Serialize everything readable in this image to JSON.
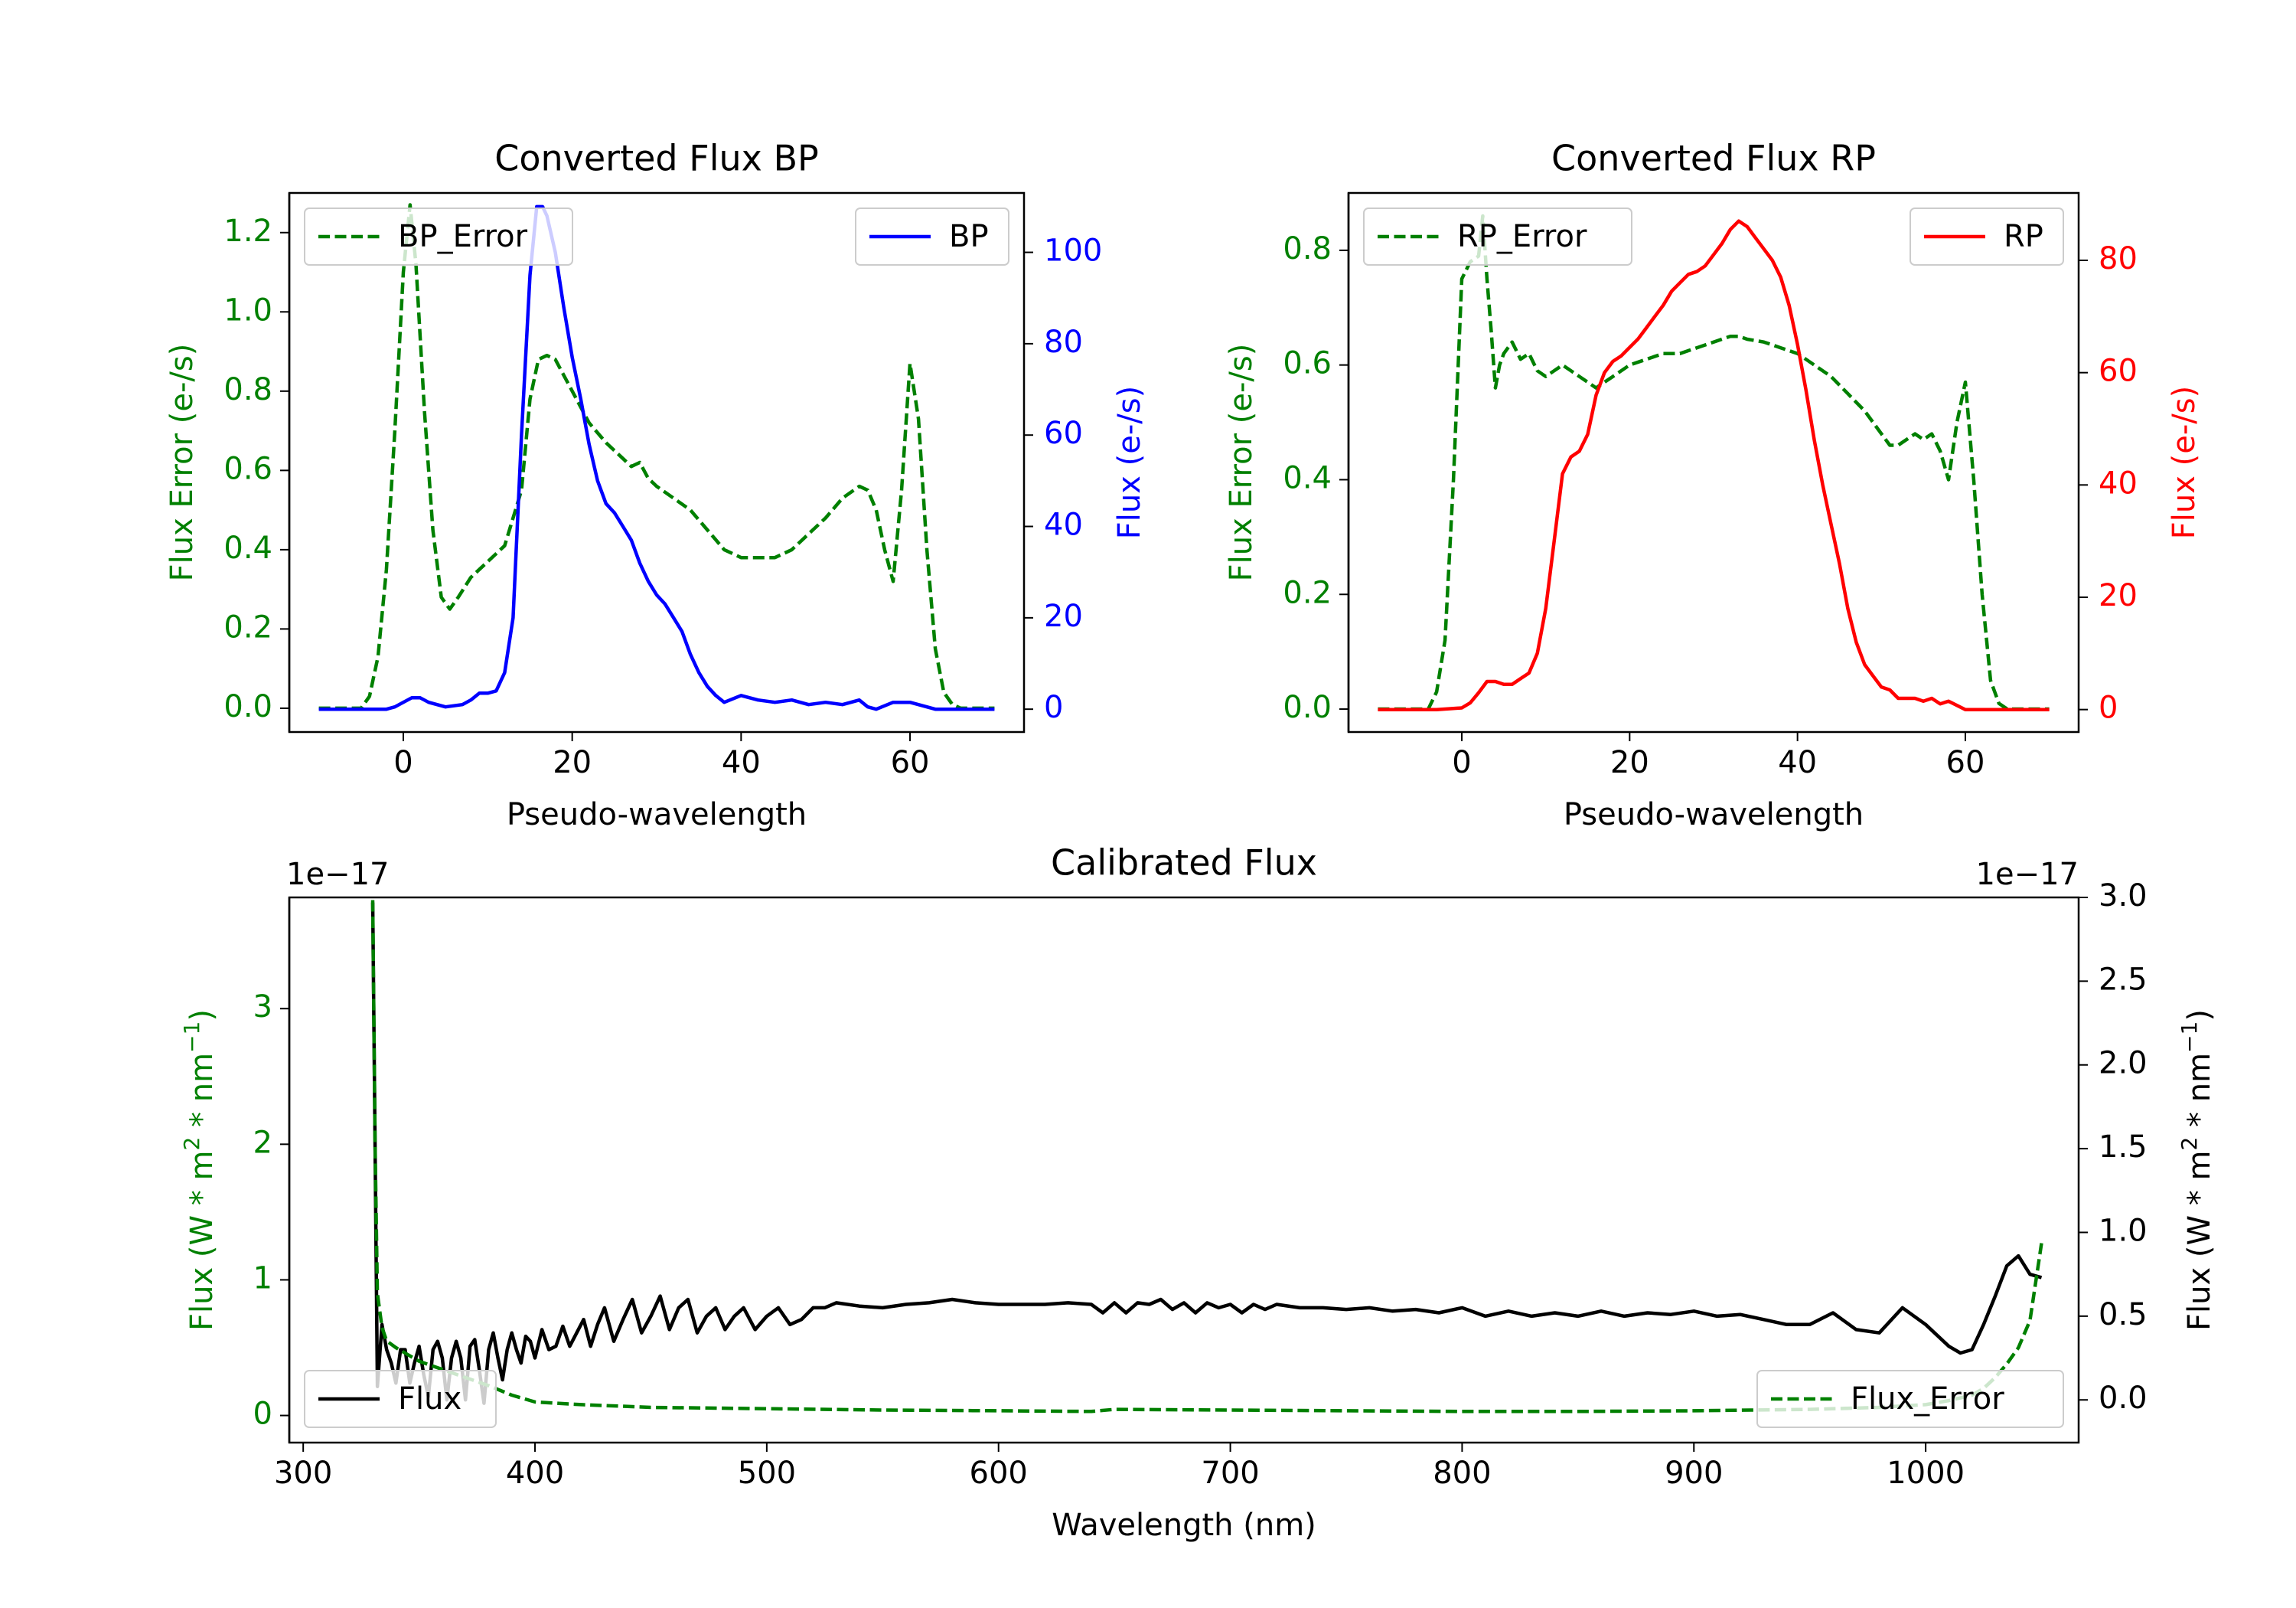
{
  "figure_colors": {
    "green": "#008000",
    "blue": "#0000ff",
    "red": "#ff0000",
    "black": "#000000"
  },
  "chart_data": [
    {
      "id": "bp",
      "type": "line",
      "title": "Converted Flux BP",
      "xlabel": "Pseudo-wavelength",
      "xlim": [
        -13.5,
        73.5
      ],
      "xticks": [
        0,
        20,
        40,
        60
      ],
      "left_axis": {
        "label": "Flux Error (e-/s)",
        "color": "#008000",
        "ylim": [
          -0.06,
          1.3
        ],
        "ticks": [
          0.0,
          0.2,
          0.4,
          0.6,
          0.8,
          1.0,
          1.2
        ],
        "tick_labels": [
          "0.0",
          "0.2",
          "0.4",
          "0.6",
          "0.8",
          "1.0",
          "1.2"
        ]
      },
      "right_axis": {
        "label": "Flux (e-/s)",
        "color": "#0000ff",
        "ylim": [
          -5,
          113
        ],
        "ticks": [
          0,
          20,
          40,
          60,
          80,
          100
        ],
        "tick_labels": [
          "0",
          "20",
          "40",
          "60",
          "80",
          "100"
        ]
      },
      "series": [
        {
          "name": "BP_Error",
          "axis": "left",
          "style": "dashed",
          "color": "#008000",
          "x": [
            -10,
            -5,
            -4,
            -3,
            -2,
            -1,
            0,
            0.8,
            1.5,
            2.5,
            3.5,
            4.5,
            5.5,
            6.5,
            8,
            10,
            12,
            14,
            15,
            16,
            17,
            18,
            19,
            20,
            22,
            24,
            26,
            27,
            28,
            29,
            30,
            32,
            34,
            36,
            38,
            40,
            42,
            44,
            46,
            48,
            50,
            52,
            54,
            55,
            56,
            57,
            58,
            59,
            60,
            61,
            62,
            63,
            64,
            65,
            66,
            70
          ],
          "y": [
            0.0,
            0.0,
            0.03,
            0.13,
            0.35,
            0.7,
            1.1,
            1.27,
            1.12,
            0.75,
            0.45,
            0.28,
            0.25,
            0.28,
            0.33,
            0.37,
            0.41,
            0.55,
            0.78,
            0.88,
            0.89,
            0.88,
            0.84,
            0.8,
            0.72,
            0.67,
            0.63,
            0.61,
            0.62,
            0.58,
            0.56,
            0.53,
            0.5,
            0.45,
            0.4,
            0.38,
            0.38,
            0.38,
            0.4,
            0.44,
            0.48,
            0.53,
            0.56,
            0.55,
            0.5,
            0.4,
            0.32,
            0.55,
            0.87,
            0.73,
            0.4,
            0.15,
            0.04,
            0.01,
            0.0,
            0.0
          ]
        },
        {
          "name": "BP",
          "axis": "right",
          "style": "solid",
          "color": "#0000ff",
          "x": [
            -10,
            -3,
            -2,
            -1,
            0,
            1,
            2,
            3,
            5,
            7,
            8,
            9,
            10,
            11,
            12,
            13,
            14,
            15,
            15.8,
            16.5,
            17,
            18,
            19,
            20,
            21,
            22,
            23,
            24,
            25,
            26,
            27,
            28,
            29,
            30,
            31,
            32,
            33,
            34,
            35,
            36,
            37,
            38,
            40,
            42,
            44,
            46,
            48,
            50,
            52,
            54,
            55,
            56,
            58,
            60,
            62,
            63,
            65,
            70
          ],
          "y": [
            0,
            0,
            0,
            0.5,
            1.5,
            2.5,
            2.5,
            1.5,
            0.5,
            1.0,
            2.0,
            3.5,
            3.5,
            4.0,
            8,
            20,
            60,
            95,
            110,
            110,
            108,
            100,
            88,
            77,
            68,
            58,
            50,
            45,
            43,
            40,
            37,
            32,
            28,
            25,
            23,
            20,
            17,
            12,
            8,
            5,
            3,
            1.5,
            3,
            2,
            1.5,
            2,
            1,
            1.5,
            1.0,
            2,
            0.5,
            0,
            1.5,
            1.5,
            0.5,
            0,
            0,
            0
          ]
        }
      ],
      "legends": [
        {
          "label": "BP_Error",
          "position": "upper-left"
        },
        {
          "label": "BP",
          "position": "upper-right"
        }
      ]
    },
    {
      "id": "rp",
      "type": "line",
      "title": "Converted Flux RP",
      "xlabel": "Pseudo-wavelength",
      "xlim": [
        -13.5,
        73.5
      ],
      "xticks": [
        0,
        20,
        40,
        60
      ],
      "left_axis": {
        "label": "Flux Error (e-/s)",
        "color": "#008000",
        "ylim": [
          -0.04,
          0.9
        ],
        "ticks": [
          0.0,
          0.2,
          0.4,
          0.6,
          0.8
        ],
        "tick_labels": [
          "0.0",
          "0.2",
          "0.4",
          "0.6",
          "0.8"
        ]
      },
      "right_axis": {
        "label": "Flux (e-/s)",
        "color": "#ff0000",
        "ylim": [
          -4,
          92
        ],
        "ticks": [
          0,
          20,
          40,
          60,
          80
        ],
        "tick_labels": [
          "0",
          "20",
          "40",
          "60",
          "80"
        ]
      },
      "series": [
        {
          "name": "RP_Error",
          "axis": "left",
          "style": "dashed",
          "color": "#008000",
          "x": [
            -10,
            -4,
            -3,
            -2,
            -1,
            0,
            1,
            2,
            2.5,
            3,
            3.5,
            4,
            4.5,
            5,
            6,
            7,
            8,
            9,
            10,
            11,
            12,
            13,
            14,
            15,
            16,
            17,
            18,
            19,
            20,
            22,
            24,
            26,
            28,
            30,
            32,
            33,
            34,
            36,
            38,
            40,
            42,
            44,
            46,
            48,
            50,
            51,
            52,
            53,
            54,
            55,
            56,
            57,
            58,
            59,
            60,
            61,
            62,
            63,
            64,
            65,
            70
          ],
          "y": [
            0.0,
            0.0,
            0.03,
            0.12,
            0.4,
            0.75,
            0.78,
            0.79,
            0.86,
            0.75,
            0.66,
            0.56,
            0.6,
            0.62,
            0.64,
            0.61,
            0.62,
            0.59,
            0.58,
            0.59,
            0.6,
            0.59,
            0.58,
            0.57,
            0.56,
            0.57,
            0.58,
            0.59,
            0.6,
            0.61,
            0.62,
            0.62,
            0.63,
            0.64,
            0.65,
            0.65,
            0.645,
            0.64,
            0.63,
            0.62,
            0.6,
            0.58,
            0.55,
            0.52,
            0.48,
            0.46,
            0.46,
            0.47,
            0.48,
            0.47,
            0.48,
            0.45,
            0.4,
            0.5,
            0.57,
            0.4,
            0.2,
            0.05,
            0.01,
            0.0,
            0.0
          ]
        },
        {
          "name": "RP",
          "axis": "right",
          "style": "solid",
          "color": "#ff0000",
          "x": [
            -10,
            -3,
            0,
            1,
            2,
            3,
            4,
            5,
            6,
            7,
            8,
            9,
            10,
            11,
            12,
            13,
            14,
            15,
            16,
            17,
            18,
            19,
            20,
            21,
            22,
            23,
            24,
            25,
            26,
            27,
            28,
            29,
            30,
            31,
            32,
            33,
            34,
            35,
            36,
            37,
            38,
            39,
            40,
            41,
            42,
            43,
            44,
            45,
            46,
            47,
            48,
            49,
            50,
            51,
            52,
            53,
            54,
            55,
            56,
            57,
            58,
            60,
            65,
            70
          ],
          "y": [
            0,
            0,
            0.3,
            1.2,
            3,
            5,
            5,
            4.5,
            4.5,
            5.5,
            6.5,
            10,
            18,
            30,
            42,
            45,
            46,
            49,
            56,
            60,
            62,
            63,
            64.5,
            66,
            68,
            70,
            72,
            74.5,
            76,
            77.5,
            78,
            79,
            81,
            83,
            85.5,
            87,
            86,
            84,
            82,
            80,
            77,
            72,
            65,
            57,
            48,
            40,
            33,
            26,
            18,
            12,
            8,
            6,
            4,
            3.5,
            2,
            2,
            2,
            1.5,
            2,
            1,
            1.5,
            0,
            0,
            0
          ]
        }
      ],
      "legends": [
        {
          "label": "RP_Error",
          "position": "upper-left"
        },
        {
          "label": "RP",
          "position": "upper-right"
        }
      ]
    },
    {
      "id": "calibrated",
      "type": "line",
      "title": "Calibrated Flux",
      "xlabel": "Wavelength (nm)",
      "xlim": [
        294,
        1066
      ],
      "xticks": [
        300,
        400,
        500,
        600,
        700,
        800,
        900,
        1000
      ],
      "left_axis": {
        "label": "Flux (W * m2 * nm-1)",
        "label_base": "Flux (W * m",
        "label_mid": " * nm",
        "label_end": ")",
        "sup_1": "2",
        "sup_2": "−1",
        "color": "#008000",
        "ylim": [
          -0.2,
          3.82
        ],
        "ticks": [
          0,
          1,
          2,
          3
        ],
        "tick_labels": [
          "0",
          "1",
          "2",
          "3"
        ],
        "offset_text": "1e−17"
      },
      "right_axis": {
        "label": "Flux (W * m2 * nm-1)",
        "label_base": "Flux (W * m",
        "label_mid": " * nm",
        "label_end": ")",
        "sup_1": "2",
        "sup_2": "−1",
        "color": "#000000",
        "ylim": [
          -0.255,
          3.0
        ],
        "ticks": [
          0.0,
          0.5,
          1.0,
          1.5,
          2.0,
          2.5,
          3.0
        ],
        "tick_labels": [
          "0.0",
          "0.5",
          "1.0",
          "1.5",
          "2.0",
          "2.5",
          "3.0"
        ],
        "offset_text": "1e−17"
      },
      "series": [
        {
          "name": "Flux",
          "axis": "right",
          "style": "solid",
          "color": "#000000",
          "x": [
            330,
            332,
            334,
            336,
            338,
            340,
            342,
            344,
            346,
            348,
            350,
            352,
            354,
            356,
            358,
            360,
            362,
            364,
            366,
            368,
            370,
            372,
            374,
            376,
            378,
            380,
            382,
            384,
            386,
            388,
            390,
            392,
            394,
            396,
            398,
            400,
            403,
            406,
            409,
            412,
            415,
            418,
            421,
            424,
            427,
            430,
            434,
            438,
            442,
            446,
            450,
            454,
            458,
            462,
            466,
            470,
            474,
            478,
            482,
            486,
            490,
            495,
            500,
            505,
            510,
            515,
            520,
            525,
            530,
            540,
            550,
            560,
            570,
            580,
            590,
            600,
            610,
            620,
            630,
            640,
            645,
            650,
            655,
            660,
            665,
            670,
            675,
            680,
            685,
            690,
            695,
            700,
            705,
            710,
            715,
            720,
            730,
            740,
            750,
            760,
            770,
            780,
            790,
            800,
            810,
            820,
            830,
            840,
            850,
            860,
            870,
            880,
            890,
            900,
            910,
            920,
            930,
            940,
            950,
            960,
            970,
            980,
            990,
            1000,
            1010,
            1015,
            1020,
            1025,
            1030,
            1035,
            1040,
            1045,
            1050
          ],
          "y": [
            2.97,
            0.08,
            0.45,
            0.3,
            0.22,
            0.1,
            0.3,
            0.3,
            0.1,
            0.22,
            0.32,
            0.15,
            0.02,
            0.3,
            0.35,
            0.25,
            0.0,
            0.25,
            0.35,
            0.25,
            0.0,
            0.32,
            0.36,
            0.18,
            -0.02,
            0.3,
            0.4,
            0.25,
            0.12,
            0.3,
            0.4,
            0.3,
            0.22,
            0.38,
            0.35,
            0.25,
            0.42,
            0.3,
            0.32,
            0.44,
            0.32,
            0.4,
            0.48,
            0.32,
            0.45,
            0.55,
            0.35,
            0.48,
            0.6,
            0.4,
            0.5,
            0.62,
            0.42,
            0.55,
            0.6,
            0.4,
            0.5,
            0.55,
            0.42,
            0.5,
            0.55,
            0.42,
            0.5,
            0.55,
            0.45,
            0.48,
            0.55,
            0.55,
            0.58,
            0.56,
            0.55,
            0.57,
            0.58,
            0.6,
            0.58,
            0.57,
            0.57,
            0.57,
            0.58,
            0.57,
            0.52,
            0.58,
            0.52,
            0.58,
            0.57,
            0.6,
            0.54,
            0.58,
            0.52,
            0.58,
            0.55,
            0.57,
            0.52,
            0.57,
            0.54,
            0.57,
            0.55,
            0.55,
            0.54,
            0.55,
            0.53,
            0.54,
            0.52,
            0.55,
            0.5,
            0.53,
            0.5,
            0.52,
            0.5,
            0.53,
            0.5,
            0.52,
            0.51,
            0.53,
            0.5,
            0.51,
            0.48,
            0.45,
            0.45,
            0.52,
            0.42,
            0.4,
            0.55,
            0.45,
            0.32,
            0.28,
            0.3,
            0.45,
            0.62,
            0.8,
            0.86,
            0.75,
            0.73
          ]
        },
        {
          "name": "Flux_Error",
          "axis": "left",
          "style": "dashed",
          "color": "#008000",
          "x": [
            330,
            331,
            332,
            334,
            336,
            340,
            345,
            350,
            360,
            370,
            380,
            390,
            400,
            420,
            450,
            500,
            550,
            600,
            640,
            650,
            700,
            750,
            800,
            850,
            900,
            950,
            980,
            1000,
            1010,
            1020,
            1025,
            1030,
            1035,
            1040,
            1045,
            1050
          ],
          "y": [
            3.8,
            2.0,
            0.9,
            0.65,
            0.55,
            0.5,
            0.45,
            0.4,
            0.34,
            0.28,
            0.22,
            0.15,
            0.1,
            0.08,
            0.06,
            0.05,
            0.04,
            0.035,
            0.03,
            0.045,
            0.04,
            0.035,
            0.03,
            0.03,
            0.035,
            0.045,
            0.06,
            0.08,
            0.11,
            0.15,
            0.2,
            0.28,
            0.38,
            0.5,
            0.7,
            1.27
          ]
        }
      ],
      "legends": [
        {
          "label": "Flux",
          "position": "lower-left"
        },
        {
          "label": "Flux_Error",
          "position": "lower-right"
        }
      ]
    }
  ]
}
